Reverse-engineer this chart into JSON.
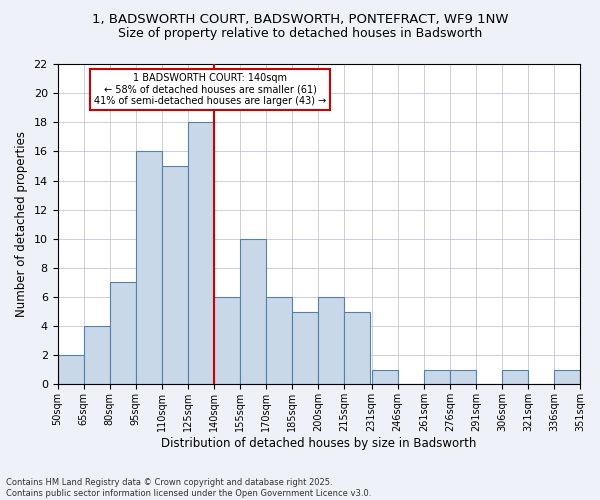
{
  "title_line1": "1, BADSWORTH COURT, BADSWORTH, PONTEFRACT, WF9 1NW",
  "title_line2": "Size of property relative to detached houses in Badsworth",
  "xlabel": "Distribution of detached houses by size in Badsworth",
  "ylabel": "Number of detached properties",
  "tick_labels": [
    "50sqm",
    "65sqm",
    "80sqm",
    "95sqm",
    "110sqm",
    "125sqm",
    "140sqm",
    "155sqm",
    "170sqm",
    "185sqm",
    "200sqm",
    "215sqm",
    "231sqm",
    "246sqm",
    "261sqm",
    "276sqm",
    "291sqm",
    "306sqm",
    "321sqm",
    "336sqm",
    "351sqm"
  ],
  "values": [
    2,
    4,
    7,
    16,
    15,
    18,
    6,
    10,
    6,
    5,
    6,
    5,
    1,
    0,
    1,
    1,
    0,
    1,
    0,
    1
  ],
  "bin_width": 15,
  "bin_starts": [
    50,
    65,
    80,
    95,
    110,
    125,
    140,
    155,
    170,
    185,
    200,
    215,
    231,
    246,
    261,
    276,
    291,
    306,
    321,
    336
  ],
  "subject_value": 140,
  "bar_color": "#c8d8e8",
  "bar_edge_color": "#5580aa",
  "vline_color": "#cc0000",
  "annotation_box_edge": "#cc0000",
  "annotation_text": "1 BADSWORTH COURT: 140sqm\n← 58% of detached houses are smaller (61)\n41% of semi-detached houses are larger (43) →",
  "footer_text": "Contains HM Land Registry data © Crown copyright and database right 2025.\nContains public sector information licensed under the Open Government Licence v3.0.",
  "ylim": [
    0,
    22
  ],
  "yticks": [
    0,
    2,
    4,
    6,
    8,
    10,
    12,
    14,
    16,
    18,
    20,
    22
  ],
  "bg_color": "#eef2f8",
  "plot_bg_color": "#ffffff"
}
